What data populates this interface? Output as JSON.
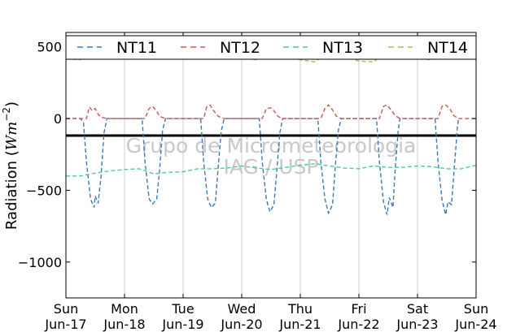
{
  "chart_data": {
    "type": "line",
    "ylabel": "Radiation (Wm⁻²)",
    "ylabel_text": "Radiation (",
    "ylabel_unit": "Wm",
    "ylabel_exp": "−2",
    "ylabel_close": ")",
    "ylim": [
      -1250,
      600
    ],
    "xlim": [
      0,
      7
    ],
    "yticks": [
      500,
      0,
      -500,
      -1000
    ],
    "ytick_labels": [
      "500",
      "0",
      "−500",
      "−1000"
    ],
    "xticks": [
      {
        "day": "Sun",
        "date": "Jun-17"
      },
      {
        "day": "Mon",
        "date": "Jun-18"
      },
      {
        "day": "Tue",
        "date": "Jun-19"
      },
      {
        "day": "Wed",
        "date": "Jun-20"
      },
      {
        "day": "Thu",
        "date": "Jun-21"
      },
      {
        "day": "Fri",
        "date": "Jun-22"
      },
      {
        "day": "Sat",
        "date": "Jun-23"
      },
      {
        "day": "Sun",
        "date": "Jun-24"
      }
    ],
    "grid": "vertical",
    "legend_position": "top",
    "watermark": [
      "Grupo de Micrometeorologia",
      "IAG / USP"
    ],
    "series": [
      {
        "name": "NT11",
        "color": "#3b78b5",
        "points": [
          [
            0,
            0
          ],
          [
            0.25,
            0
          ],
          [
            0.3,
            -30
          ],
          [
            0.35,
            -300
          ],
          [
            0.42,
            -560
          ],
          [
            0.48,
            -620
          ],
          [
            0.5,
            -540
          ],
          [
            0.55,
            -590
          ],
          [
            0.6,
            -400
          ],
          [
            0.65,
            -100
          ],
          [
            0.7,
            0
          ],
          [
            1,
            0
          ],
          [
            1.3,
            0
          ],
          [
            1.35,
            -300
          ],
          [
            1.42,
            -560
          ],
          [
            1.48,
            -595
          ],
          [
            1.55,
            -560
          ],
          [
            1.6,
            -350
          ],
          [
            1.65,
            -80
          ],
          [
            1.7,
            0
          ],
          [
            2,
            0
          ],
          [
            2.3,
            0
          ],
          [
            2.35,
            -300
          ],
          [
            2.42,
            -560
          ],
          [
            2.48,
            -620
          ],
          [
            2.55,
            -590
          ],
          [
            2.6,
            -330
          ],
          [
            2.65,
            -90
          ],
          [
            2.7,
            0
          ],
          [
            3,
            0
          ],
          [
            3.3,
            0
          ],
          [
            3.35,
            -300
          ],
          [
            3.42,
            -560
          ],
          [
            3.48,
            -650
          ],
          [
            3.55,
            -600
          ],
          [
            3.6,
            -360
          ],
          [
            3.65,
            -100
          ],
          [
            3.7,
            0
          ],
          [
            4,
            0
          ],
          [
            4.3,
            0
          ],
          [
            4.35,
            -300
          ],
          [
            4.42,
            -560
          ],
          [
            4.48,
            -660
          ],
          [
            4.55,
            -600
          ],
          [
            4.6,
            -320
          ],
          [
            4.65,
            -80
          ],
          [
            4.7,
            0
          ],
          [
            5,
            0
          ],
          [
            5.3,
            0
          ],
          [
            5.35,
            -300
          ],
          [
            5.42,
            -580
          ],
          [
            5.48,
            -670
          ],
          [
            5.52,
            -550
          ],
          [
            5.58,
            -620
          ],
          [
            5.62,
            -350
          ],
          [
            5.67,
            -90
          ],
          [
            5.7,
            0
          ],
          [
            6,
            0
          ],
          [
            6.3,
            0
          ],
          [
            6.35,
            -300
          ],
          [
            6.42,
            -570
          ],
          [
            6.48,
            -670
          ],
          [
            6.52,
            -580
          ],
          [
            6.58,
            -600
          ],
          [
            6.63,
            -330
          ],
          [
            6.68,
            -60
          ],
          [
            6.7,
            0
          ]
        ]
      },
      {
        "name": "NT12",
        "color": "#d9534f",
        "points": [
          [
            0,
            0
          ],
          [
            0.35,
            0
          ],
          [
            0.4,
            80
          ],
          [
            0.45,
            55
          ],
          [
            0.5,
            70
          ],
          [
            0.55,
            30
          ],
          [
            0.6,
            10
          ],
          [
            0.7,
            0
          ],
          [
            1,
            0
          ],
          [
            1.35,
            0
          ],
          [
            1.42,
            70
          ],
          [
            1.48,
            85
          ],
          [
            1.55,
            50
          ],
          [
            1.6,
            15
          ],
          [
            1.7,
            0
          ],
          [
            2,
            0
          ],
          [
            2.35,
            0
          ],
          [
            2.4,
            80
          ],
          [
            2.46,
            95
          ],
          [
            2.52,
            55
          ],
          [
            2.6,
            15
          ],
          [
            2.7,
            0
          ],
          [
            3,
            0
          ],
          [
            3.35,
            0
          ],
          [
            3.42,
            70
          ],
          [
            3.5,
            75
          ],
          [
            3.56,
            50
          ],
          [
            3.62,
            15
          ],
          [
            3.7,
            0
          ],
          [
            4,
            0
          ],
          [
            4.35,
            0
          ],
          [
            4.42,
            70
          ],
          [
            4.48,
            95
          ],
          [
            4.55,
            60
          ],
          [
            4.62,
            15
          ],
          [
            4.7,
            0
          ],
          [
            5,
            0
          ],
          [
            5.35,
            0
          ],
          [
            5.42,
            85
          ],
          [
            5.48,
            95
          ],
          [
            5.55,
            60
          ],
          [
            5.62,
            20
          ],
          [
            5.7,
            0
          ],
          [
            6,
            0
          ],
          [
            6.35,
            0
          ],
          [
            6.42,
            85
          ],
          [
            6.48,
            95
          ],
          [
            6.55,
            70
          ],
          [
            6.62,
            20
          ],
          [
            6.7,
            0
          ],
          [
            7,
            0
          ]
        ]
      },
      {
        "name": "NT13",
        "color": "#4fc9a2",
        "points": [
          [
            0,
            -400
          ],
          [
            0.25,
            -400
          ],
          [
            0.5,
            -380
          ],
          [
            0.75,
            -365
          ],
          [
            1,
            -355
          ],
          [
            1.25,
            -350
          ],
          [
            1.5,
            -385
          ],
          [
            1.75,
            -375
          ],
          [
            2,
            -370
          ],
          [
            2.25,
            -350
          ],
          [
            2.5,
            -350
          ],
          [
            2.75,
            -345
          ],
          [
            3,
            -330
          ],
          [
            3.25,
            -345
          ],
          [
            3.5,
            -355
          ],
          [
            3.75,
            -340
          ],
          [
            4,
            -325
          ],
          [
            4.25,
            -315
          ],
          [
            4.5,
            -330
          ],
          [
            4.75,
            -345
          ],
          [
            5,
            -350
          ],
          [
            5.25,
            -330
          ],
          [
            5.5,
            -340
          ],
          [
            5.75,
            -340
          ],
          [
            6,
            -330
          ],
          [
            6.25,
            -335
          ],
          [
            6.5,
            -350
          ],
          [
            6.75,
            -350
          ],
          [
            7,
            -325
          ]
        ]
      },
      {
        "name": "NT14",
        "color": "#b5b84a",
        "points": [
          [
            0,
            415
          ],
          [
            0.25,
            410
          ],
          [
            0.5,
            480
          ],
          [
            0.6,
            505
          ],
          [
            0.7,
            470
          ],
          [
            0.85,
            430
          ],
          [
            1,
            425
          ],
          [
            1.25,
            420
          ],
          [
            1.5,
            490
          ],
          [
            1.6,
            510
          ],
          [
            1.7,
            470
          ],
          [
            1.85,
            430
          ],
          [
            2,
            420
          ],
          [
            2.25,
            415
          ],
          [
            2.5,
            470
          ],
          [
            2.6,
            490
          ],
          [
            2.7,
            460
          ],
          [
            2.85,
            430
          ],
          [
            3,
            420
          ],
          [
            3.25,
            410
          ],
          [
            3.5,
            470
          ],
          [
            3.6,
            495
          ],
          [
            3.7,
            465
          ],
          [
            3.85,
            420
          ],
          [
            4,
            410
          ],
          [
            4.25,
            395
          ],
          [
            4.5,
            470
          ],
          [
            4.6,
            490
          ],
          [
            4.7,
            455
          ],
          [
            4.85,
            420
          ],
          [
            5,
            400
          ],
          [
            5.25,
            395
          ],
          [
            5.5,
            470
          ],
          [
            5.6,
            490
          ],
          [
            5.7,
            460
          ],
          [
            5.85,
            420
          ],
          [
            6,
            415
          ],
          [
            6.25,
            410
          ],
          [
            6.5,
            470
          ],
          [
            6.6,
            490
          ],
          [
            6.7,
            465
          ],
          [
            6.85,
            430
          ],
          [
            7,
            415
          ]
        ]
      }
    ]
  }
}
